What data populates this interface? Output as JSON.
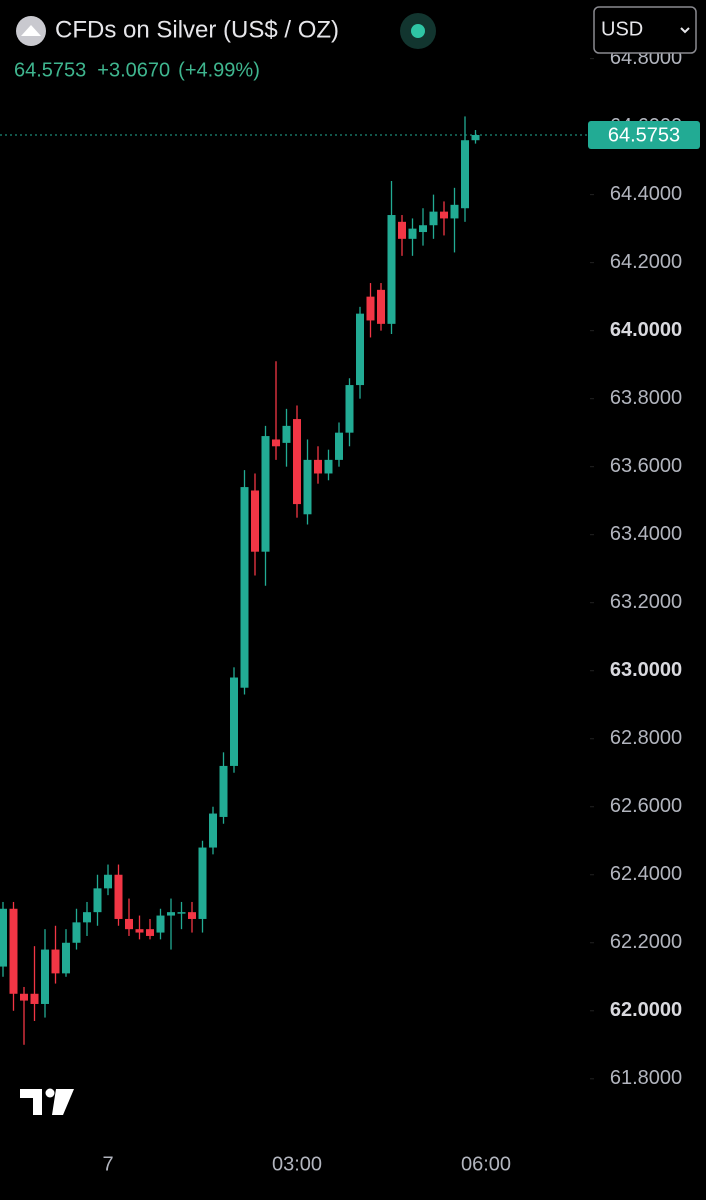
{
  "chart_data": {
    "type": "candlestick",
    "title": "CFDs on Silver (US$ / OZ)",
    "change": "+3.0670",
    "change_pct": "(+4.99%)",
    "currency": "USD",
    "up_color": "#22ab94",
    "down_color": "#f23645",
    "categories": [
      null,
      null,
      null,
      null,
      null,
      null,
      null,
      null,
      null,
      null,
      "7",
      null,
      null,
      null,
      null,
      null,
      null,
      null,
      null,
      null,
      null,
      null,
      null,
      null,
      null,
      null,
      null,
      null,
      "03:00",
      null,
      null,
      null,
      null,
      null,
      null,
      null,
      null,
      null,
      null,
      null,
      null,
      null,
      null,
      null,
      null,
      null,
      "06:00",
      null,
      null,
      null,
      null,
      null,
      null,
      null,
      null,
      null,
      null
    ],
    "open": [
      62.13,
      62.3,
      62.05,
      62.05,
      62.02,
      62.18,
      62.11,
      62.2,
      62.26,
      62.29,
      62.36,
      62.4,
      62.27,
      62.24,
      62.24,
      62.23,
      62.28,
      62.29,
      62.29,
      62.27,
      62.48,
      62.57,
      62.72,
      62.95,
      63.53,
      63.35,
      63.68,
      63.67,
      63.74,
      63.46,
      63.62,
      63.58,
      63.62,
      63.7,
      63.84,
      64.1,
      64.12,
      64.02,
      64.32,
      64.27,
      64.29,
      64.31,
      64.35,
      64.33,
      64.36,
      64.56,
      null,
      null,
      null,
      null,
      null,
      null,
      null,
      null,
      null,
      null,
      null
    ],
    "high": [
      62.32,
      62.32,
      62.07,
      62.19,
      62.24,
      62.25,
      62.24,
      62.3,
      62.32,
      62.4,
      62.43,
      62.43,
      62.33,
      62.28,
      62.27,
      62.3,
      62.33,
      62.32,
      62.32,
      62.5,
      62.6,
      62.76,
      63.01,
      63.59,
      63.58,
      63.72,
      63.91,
      63.77,
      63.78,
      63.68,
      63.66,
      63.65,
      63.73,
      63.86,
      64.07,
      64.14,
      64.14,
      64.44,
      64.34,
      64.33,
      64.36,
      64.4,
      64.38,
      64.42,
      64.63,
      64.59,
      null,
      null,
      null,
      null,
      null,
      null,
      null,
      null,
      null,
      null,
      null
    ],
    "low": [
      62.1,
      62.0,
      61.9,
      61.97,
      61.98,
      62.08,
      62.1,
      62.18,
      62.22,
      62.25,
      62.34,
      62.25,
      62.22,
      62.21,
      62.21,
      62.21,
      62.18,
      62.24,
      62.23,
      62.23,
      62.46,
      62.55,
      62.7,
      62.93,
      63.28,
      63.25,
      63.62,
      63.6,
      63.45,
      63.43,
      63.55,
      63.56,
      63.6,
      63.66,
      63.8,
      63.98,
      64.0,
      63.99,
      64.22,
      64.22,
      64.25,
      64.27,
      64.28,
      64.23,
      64.32,
      64.55,
      null,
      null,
      null,
      null,
      null,
      null,
      null,
      null,
      null,
      null,
      null
    ],
    "close": [
      62.3,
      62.05,
      62.03,
      62.02,
      62.18,
      62.11,
      62.2,
      62.26,
      62.29,
      62.36,
      62.4,
      62.27,
      62.24,
      62.23,
      62.22,
      62.28,
      62.29,
      62.29,
      62.27,
      62.48,
      62.58,
      62.72,
      62.98,
      63.54,
      63.35,
      63.69,
      63.66,
      63.72,
      63.49,
      63.62,
      63.58,
      63.62,
      63.7,
      63.84,
      64.05,
      64.03,
      64.02,
      64.34,
      64.27,
      64.3,
      64.31,
      64.35,
      64.33,
      64.37,
      64.56,
      64.5753,
      null,
      null,
      null,
      null,
      null,
      null,
      null,
      null,
      null,
      null,
      null
    ],
    "ylim": [
      61.62,
      64.84
    ],
    "yticks": [
      {
        "value": 61.8,
        "label": "61.8000"
      },
      {
        "value": 62,
        "label": "62.0000"
      },
      {
        "value": 62.2,
        "label": "62.2000"
      },
      {
        "value": 62.4,
        "label": "62.4000"
      },
      {
        "value": 62.6,
        "label": "62.6000"
      },
      {
        "value": 62.8,
        "label": "62.8000"
      },
      {
        "value": 63,
        "label": "63.0000"
      },
      {
        "value": 63.2,
        "label": "63.2000"
      },
      {
        "value": 63.4,
        "label": "63.4000"
      },
      {
        "value": 63.6,
        "label": "63.6000"
      },
      {
        "value": 63.8,
        "label": "63.8000"
      },
      {
        "value": 64,
        "label": "64.0000"
      },
      {
        "value": 64.2,
        "label": "64.2000"
      },
      {
        "value": 64.4,
        "label": "64.4000"
      },
      {
        "value": 64.6,
        "label": "64.6000"
      },
      {
        "value": 64.8,
        "label": "64.8000"
      }
    ]
  }
}
